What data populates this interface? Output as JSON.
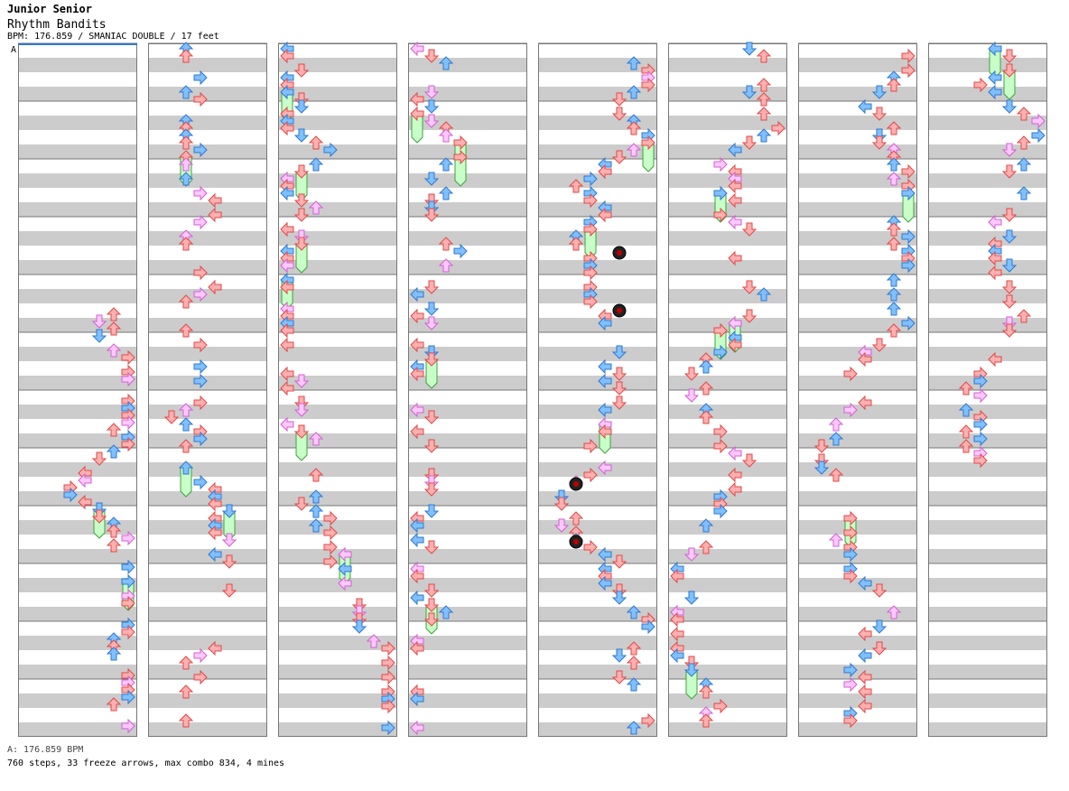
{
  "header": {
    "artist": "Junior Senior",
    "title": "Rhythm Bandits",
    "info": "BPM: 176.859 / SMANIAC DOUBLE / 17 feet",
    "bpm_marker": "A"
  },
  "footer": {
    "bpm_line": "A: 176.859 BPM",
    "stats_line": "760 steps, 33 freeze arrows, max combo 834, 4 mines"
  },
  "colors": {
    "background": "#ffffff",
    "stripe": "#cccccc",
    "frame": "#777777",
    "red_arrow": "#ffb0b0",
    "red_stroke": "#e04848",
    "blue_arrow": "#80c0ff",
    "blue_stroke": "#3078d0",
    "pink_arrow": "#ffc8ff",
    "pink_stroke": "#d060d0",
    "freeze_fill": "#c8ffc8",
    "freeze_stroke": "#40a040",
    "mine": "#c00000"
  },
  "chart_data": {
    "type": "table",
    "mode": "SMANIAC DOUBLE",
    "difficulty_feet": 17,
    "bpm": 176.859,
    "steps": 760,
    "freeze_arrows": 33,
    "max_combo": 834,
    "mines": 4,
    "columns": 8
  }
}
